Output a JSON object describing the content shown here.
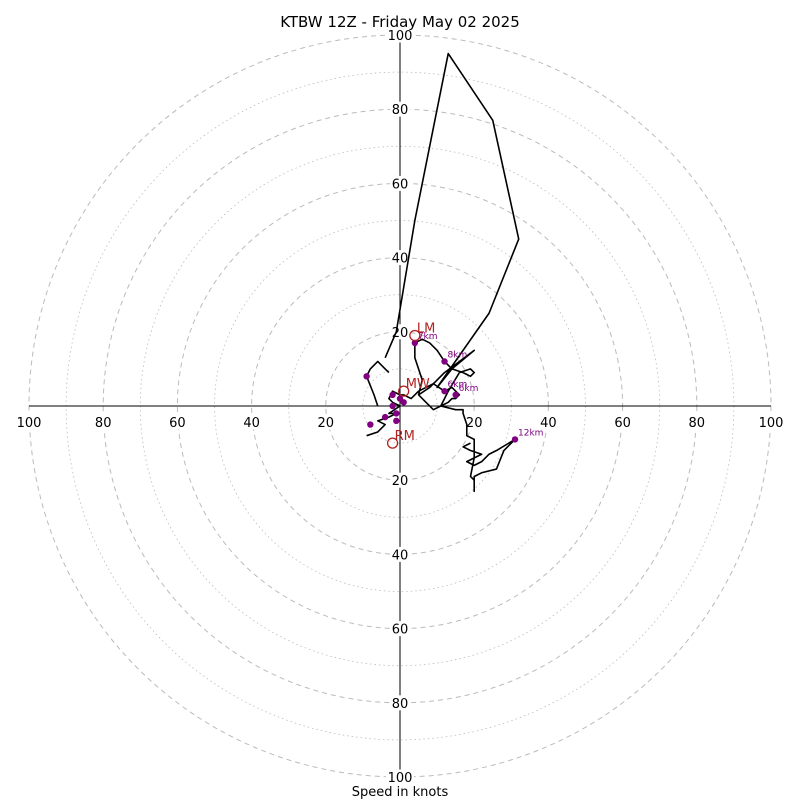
{
  "chart_data": {
    "type": "line",
    "chart_kind": "hodograph",
    "title": "KTBW 12Z - Friday May 02 2025",
    "xlabel": "Speed in knots",
    "range": [
      0,
      100
    ],
    "ring_step_major": 20,
    "ring_step_minor": 10,
    "tick_labels": [
      "20",
      "40",
      "60",
      "80",
      "100"
    ],
    "grid": true,
    "colors": {
      "trace": "#000000",
      "height_points": "#800080",
      "motion_markers": "#b22222",
      "grid": "#bbbbbb"
    },
    "trace_uv": [
      [
        -9,
        -8
      ],
      [
        -6,
        -7
      ],
      [
        -4,
        -5
      ],
      [
        -6,
        -4
      ],
      [
        -3,
        -3
      ],
      [
        -1,
        -2
      ],
      [
        -3,
        -2
      ],
      [
        0,
        0
      ],
      [
        -2,
        1
      ],
      [
        -3,
        2
      ],
      [
        -2,
        4
      ],
      [
        0,
        3
      ],
      [
        1,
        3
      ],
      [
        3,
        2
      ],
      [
        5,
        4
      ],
      [
        7,
        5
      ],
      [
        9,
        6
      ],
      [
        12,
        4
      ],
      [
        14,
        5
      ],
      [
        16,
        3
      ],
      [
        15,
        2
      ],
      [
        14,
        2
      ],
      [
        13,
        1
      ],
      [
        11,
        0
      ],
      [
        9,
        -1
      ],
      [
        7,
        1
      ],
      [
        5,
        3
      ],
      [
        6,
        7
      ],
      [
        4,
        13
      ],
      [
        4,
        17
      ],
      [
        6,
        18
      ],
      [
        8,
        17
      ],
      [
        10,
        15
      ],
      [
        12,
        12
      ],
      [
        14,
        10
      ],
      [
        17,
        9
      ],
      [
        19,
        8
      ],
      [
        20,
        9
      ],
      [
        19,
        10
      ],
      [
        16,
        9
      ],
      [
        13,
        4
      ],
      [
        12,
        2
      ],
      [
        11,
        0
      ],
      [
        15,
        -1
      ],
      [
        17,
        -1
      ],
      [
        17,
        -2
      ],
      [
        18,
        -5
      ],
      [
        18,
        -8
      ],
      [
        20,
        -9
      ],
      [
        20,
        -14
      ],
      [
        19,
        -19
      ],
      [
        20,
        -20
      ],
      [
        20,
        -23
      ],
      [
        20,
        -19
      ],
      [
        22,
        -18
      ],
      [
        26,
        -17
      ],
      [
        28,
        -12
      ],
      [
        30,
        -10
      ],
      [
        31,
        -9
      ],
      [
        26,
        -12
      ],
      [
        24,
        -13
      ],
      [
        22,
        -15
      ],
      [
        20,
        -16
      ],
      [
        18,
        -15
      ],
      [
        22,
        -13
      ],
      [
        19,
        -12
      ],
      [
        17,
        -11
      ],
      [
        19,
        -10
      ]
    ],
    "branch_uv": [
      [
        -6,
        0
      ],
      [
        -7,
        3
      ],
      [
        -9,
        8
      ],
      [
        -8,
        10
      ],
      [
        -7,
        11
      ],
      [
        -6,
        12
      ],
      [
        -4,
        10
      ],
      [
        -3,
        9
      ]
    ],
    "upper_uv": [
      [
        5,
        3
      ],
      [
        8,
        5
      ],
      [
        12,
        9
      ],
      [
        16,
        12
      ],
      [
        20,
        15
      ],
      [
        14,
        10
      ],
      [
        10,
        5
      ],
      [
        24,
        25
      ],
      [
        32,
        45
      ],
      [
        25,
        77
      ],
      [
        13,
        95
      ],
      [
        4,
        50
      ],
      [
        -1,
        20
      ],
      [
        -4,
        13
      ]
    ],
    "height_points": [
      {
        "label": "",
        "u": -9,
        "v": 8
      },
      {
        "label": "",
        "u": -8,
        "v": -5
      },
      {
        "label": "",
        "u": -4,
        "v": -3
      },
      {
        "label": "",
        "u": -1,
        "v": -4
      },
      {
        "label": "",
        "u": -1,
        "v": -2
      },
      {
        "label": "",
        "u": -2,
        "v": 0
      },
      {
        "label": "",
        "u": -2,
        "v": 3
      },
      {
        "label": "",
        "u": 0,
        "v": 2
      },
      {
        "label": "",
        "u": 1,
        "v": 1
      },
      {
        "label": "6km",
        "u": 12,
        "v": 4
      },
      {
        "label": "6km",
        "u": 15,
        "v": 3
      },
      {
        "label": "7km",
        "u": 4,
        "v": 17
      },
      {
        "label": "8km",
        "u": 12,
        "v": 12
      },
      {
        "label": "12km",
        "u": 31,
        "v": -9
      }
    ],
    "motion_markers": [
      {
        "label": "LM",
        "u": 4,
        "v": 19
      },
      {
        "label": "MW",
        "u": 1,
        "v": 4
      },
      {
        "label": "RM",
        "u": -2,
        "v": -10
      }
    ]
  }
}
